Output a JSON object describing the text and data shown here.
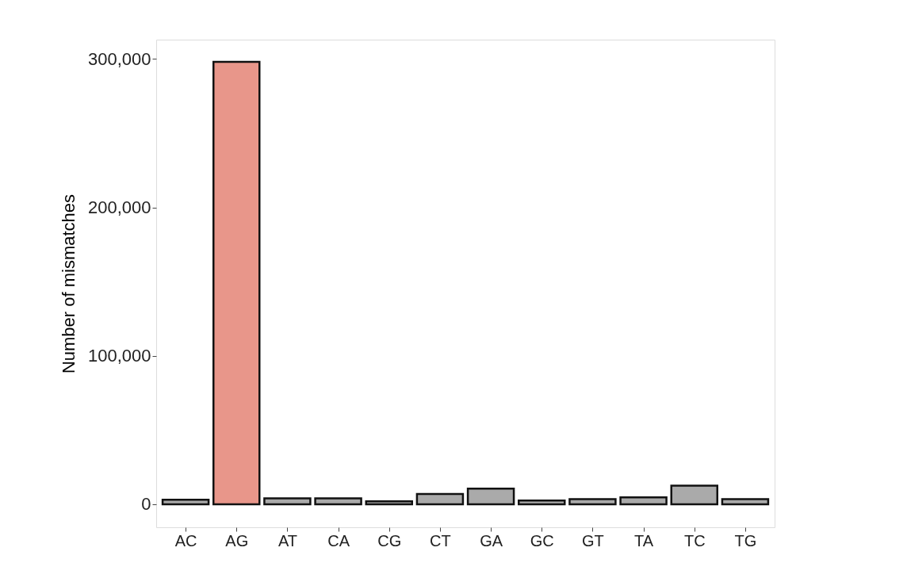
{
  "chart_data": {
    "type": "bar",
    "ylabel": "Number of mismatches",
    "categories": [
      "AC",
      "AG",
      "AT",
      "CA",
      "CG",
      "CT",
      "GA",
      "GC",
      "GT",
      "TA",
      "TC",
      "TG"
    ],
    "values": [
      3000,
      298000,
      4000,
      4000,
      2000,
      7000,
      10500,
      2500,
      3500,
      4700,
      12500,
      3500
    ],
    "colors": [
      "#aaaaaa",
      "#e8968a",
      "#aaaaaa",
      "#aaaaaa",
      "#aaaaaa",
      "#aaaaaa",
      "#aaaaaa",
      "#aaaaaa",
      "#aaaaaa",
      "#aaaaaa",
      "#aaaaaa",
      "#aaaaaa"
    ],
    "ylim": [
      -15500,
      313000
    ],
    "yticks": [
      {
        "value": 0,
        "label": "0"
      },
      {
        "value": 100000,
        "label": "100,000"
      },
      {
        "value": 200000,
        "label": "200,000"
      },
      {
        "value": 300000,
        "label": "300,000"
      }
    ],
    "grid": false
  }
}
